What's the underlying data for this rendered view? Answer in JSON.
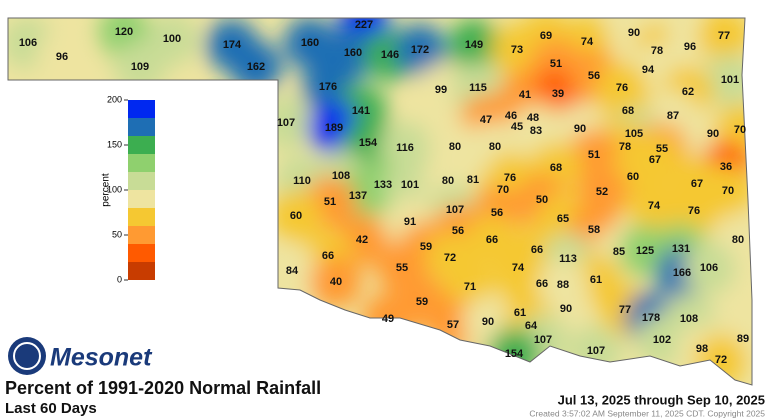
{
  "title": "Percent of 1991-2020 Normal Rainfall",
  "subtitle": "Last 60 Days",
  "date_range": "Jul 13, 2025 through Sep 10, 2025",
  "created": "Created 3:57:02 AM September 11, 2025 CDT. Copyright 2025",
  "logo": "Mesonet",
  "legend": {
    "label": "percent",
    "ylim": [
      0,
      200
    ],
    "yticks": [
      0,
      50,
      100,
      150,
      200
    ],
    "colors": [
      "#c83c00",
      "#ff5a00",
      "#ff9a32",
      "#f5c832",
      "#eee4a0",
      "#c8dc96",
      "#8fd06e",
      "#3cae50",
      "#1e6eb4",
      "#0028f0"
    ]
  },
  "stations": [
    106,
    96,
    120,
    109,
    100,
    174,
    162,
    227,
    160,
    160,
    146,
    172,
    149,
    73,
    69,
    74,
    90,
    78,
    96,
    77,
    51,
    94,
    101,
    176,
    99,
    115,
    41,
    39,
    56,
    76,
    62,
    141,
    107,
    47,
    46,
    48,
    45,
    83,
    90,
    68,
    87,
    189,
    154,
    105,
    90,
    70,
    116,
    80,
    80,
    78,
    55,
    51,
    67,
    68,
    76,
    36,
    110,
    108,
    133,
    101,
    80,
    81,
    70,
    60,
    67,
    70,
    52,
    137,
    51,
    50,
    74,
    76,
    107,
    56,
    65,
    60,
    91,
    56,
    58,
    80,
    42,
    66,
    59,
    131,
    66,
    85,
    125,
    72,
    66,
    113,
    166,
    106,
    84,
    55,
    74,
    40,
    61,
    71,
    66,
    88,
    59,
    90,
    77,
    61,
    178,
    108,
    49,
    57,
    90,
    64,
    107,
    102,
    89,
    154,
    107,
    98,
    72
  ]
}
